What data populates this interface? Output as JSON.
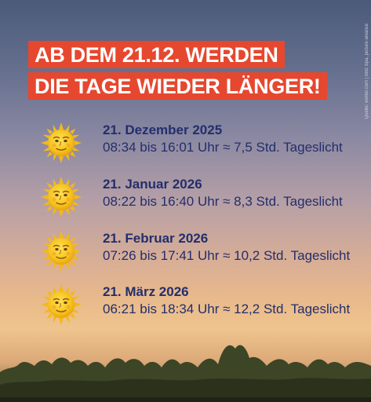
{
  "headline": {
    "line1": "AB DEM 21.12. WERDEN",
    "line2": "DIE TAGE WIEDER LÄNGER!"
  },
  "source": "Quelle: wetter.com | Bild: bpa, picture-alliance",
  "colors": {
    "banner": "#e5482f",
    "text": "#232e6b",
    "sun": "#f6c21c"
  },
  "entries": [
    {
      "date": "21. Dezember 2025",
      "times": "08:34 bis 16:01 Uhr ≈ 7,5 Std. Tageslicht",
      "icon": "sun-with-face-icon"
    },
    {
      "date": "21. Januar 2026",
      "times": "08:22 bis 16:40 Uhr ≈ 8,3 Std. Tageslicht",
      "icon": "sun-with-face-icon"
    },
    {
      "date": "21. Februar 2026",
      "times": "07:26 bis 17:41 Uhr ≈ 10,2 Std. Tageslicht",
      "icon": "sun-with-face-icon"
    },
    {
      "date": "21. März 2026",
      "times": "06:21 bis 18:34 Uhr ≈ 12,2 Std. Tageslicht",
      "icon": "sun-with-face-icon"
    }
  ]
}
